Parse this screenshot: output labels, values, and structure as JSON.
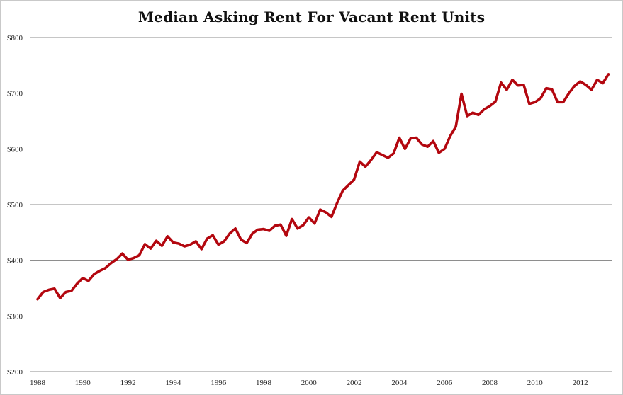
{
  "chart_data": {
    "type": "line",
    "title": "Median Asking Rent For Vacant Rent Units",
    "xlabel": "",
    "ylabel": "",
    "xlim": [
      1988,
      2013.4
    ],
    "ylim": [
      200,
      800
    ],
    "y_ticks": [
      {
        "value": 200,
        "label": "$200"
      },
      {
        "value": 300,
        "label": "$300"
      },
      {
        "value": 400,
        "label": "$400"
      },
      {
        "value": 500,
        "label": "$500"
      },
      {
        "value": 600,
        "label": "$600"
      },
      {
        "value": 700,
        "label": "$700"
      },
      {
        "value": 800,
        "label": "$800"
      }
    ],
    "x_ticks": [
      {
        "value": 1988,
        "label": "1988"
      },
      {
        "value": 1990,
        "label": "1990"
      },
      {
        "value": 1992,
        "label": "1992"
      },
      {
        "value": 1994,
        "label": "1994"
      },
      {
        "value": 1996,
        "label": "1996"
      },
      {
        "value": 1998,
        "label": "1998"
      },
      {
        "value": 2000,
        "label": "2000"
      },
      {
        "value": 2002,
        "label": "2002"
      },
      {
        "value": 2004,
        "label": "2004"
      },
      {
        "value": 2006,
        "label": "2006"
      },
      {
        "value": 2008,
        "label": "2008"
      },
      {
        "value": 2010,
        "label": "2010"
      },
      {
        "value": 2012,
        "label": "2012"
      }
    ],
    "grid": "horizontal",
    "legend": "none",
    "series": [
      {
        "color": "#b3070f",
        "x": [
          1988.0,
          1988.25,
          1988.5,
          1988.75,
          1989.0,
          1989.25,
          1989.5,
          1989.75,
          1990.0,
          1990.25,
          1990.5,
          1990.75,
          1991.0,
          1991.25,
          1991.5,
          1991.75,
          1992.0,
          1992.25,
          1992.5,
          1992.75,
          1993.0,
          1993.25,
          1993.5,
          1993.75,
          1994.0,
          1994.25,
          1994.5,
          1994.75,
          1995.0,
          1995.25,
          1995.5,
          1995.75,
          1996.0,
          1996.25,
          1996.5,
          1996.75,
          1997.0,
          1997.25,
          1997.5,
          1997.75,
          1998.0,
          1998.25,
          1998.5,
          1998.75,
          1999.0,
          1999.25,
          1999.5,
          1999.75,
          2000.0,
          2000.25,
          2000.5,
          2000.75,
          2001.0,
          2001.25,
          2001.5,
          2001.75,
          2002.0,
          2002.25,
          2002.5,
          2002.75,
          2003.0,
          2003.25,
          2003.5,
          2003.75,
          2004.0,
          2004.25,
          2004.5,
          2004.75,
          2005.0,
          2005.25,
          2005.5,
          2005.75,
          2006.0,
          2006.25,
          2006.5,
          2006.75,
          2007.0,
          2007.25,
          2007.5,
          2007.75,
          2008.0,
          2008.25,
          2008.5,
          2008.75,
          2009.0,
          2009.25,
          2009.5,
          2009.75,
          2010.0,
          2010.25,
          2010.5,
          2010.75,
          2011.0,
          2011.25,
          2011.5,
          2011.75,
          2012.0,
          2012.25,
          2012.5,
          2012.75,
          2013.0,
          2013.25
        ],
        "y": [
          330,
          343,
          347,
          349,
          332,
          343,
          345,
          358,
          368,
          363,
          375,
          381,
          386,
          395,
          402,
          412,
          401,
          404,
          409,
          429,
          421,
          435,
          426,
          443,
          432,
          430,
          425,
          428,
          434,
          420,
          439,
          445,
          428,
          434,
          448,
          457,
          437,
          431,
          448,
          455,
          456,
          453,
          462,
          464,
          444,
          474,
          457,
          463,
          477,
          466,
          491,
          486,
          478,
          503,
          525,
          535,
          545,
          577,
          568,
          580,
          594,
          589,
          584,
          592,
          620,
          600,
          619,
          620,
          608,
          604,
          614,
          593,
          600,
          623,
          640,
          699,
          659,
          665,
          661,
          671,
          677,
          685,
          719,
          706,
          724,
          714,
          715,
          681,
          684,
          691,
          709,
          707,
          684,
          684,
          700,
          713,
          721,
          715,
          706,
          724,
          718,
          734
        ]
      }
    ]
  }
}
